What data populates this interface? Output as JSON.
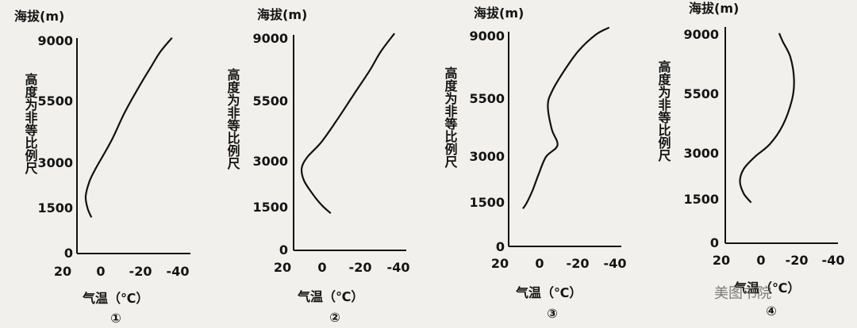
{
  "chart_data": [
    {
      "type": "line",
      "panel_label": "①",
      "ylabel_top": "海拔(m)",
      "ylabel_side": "高度为非等比例尺",
      "xlabel": "气温（℃）",
      "yticks": [
        0,
        1500,
        3000,
        5500,
        9000
      ],
      "xticks": [
        20,
        0,
        -20,
        -40
      ],
      "ytick_labels": [
        "0",
        "1500",
        "3000",
        "5500",
        "9000"
      ],
      "xtick_labels": [
        "20",
        "0",
        "-20",
        "-40"
      ],
      "xlim": [
        20,
        -40
      ],
      "series": [
        {
          "x": [
            5,
            7,
            8,
            6,
            3,
            -1,
            -6,
            -12,
            -19,
            -26,
            -31,
            -37
          ],
          "y": [
            1200,
            1500,
            1900,
            2400,
            2800,
            3300,
            4000,
            5000,
            6200,
            7500,
            8400,
            9200
          ]
        }
      ]
    },
    {
      "type": "line",
      "panel_label": "②",
      "ylabel_top": "海拔(m)",
      "ylabel_side": "高度为非等比例尺",
      "xlabel": "气温（℃）",
      "yticks": [
        0,
        1500,
        3000,
        5500,
        9000
      ],
      "xticks": [
        20,
        0,
        -20,
        -40
      ],
      "ytick_labels": [
        "0",
        "1500",
        "3000",
        "5500",
        "9000"
      ],
      "xtick_labels": [
        "20",
        "0",
        "-20",
        "-40"
      ],
      "xlim": [
        20,
        -40
      ],
      "series": [
        {
          "x": [
            -5,
            0,
            5,
            9,
            10,
            7,
            0,
            -8,
            -17,
            -25,
            -31,
            -38
          ],
          "y": [
            1300,
            1600,
            2000,
            2400,
            2800,
            3200,
            3800,
            4700,
            5900,
            7200,
            8300,
            9300
          ]
        }
      ]
    },
    {
      "type": "line",
      "panel_label": "③",
      "ylabel_top": "海拔(m)",
      "ylabel_side": "高度为非等比例尺",
      "xlabel": "气温（℃）",
      "yticks": [
        0,
        1500,
        3000,
        5500,
        9000
      ],
      "xticks": [
        20,
        0,
        -20,
        -40
      ],
      "ytick_labels": [
        "0",
        "1500",
        "3000",
        "5500",
        "9000"
      ],
      "xtick_labels": [
        "20",
        "0",
        "-20",
        "-40"
      ],
      "xlim": [
        20,
        -40
      ],
      "series": [
        {
          "x": [
            8,
            6,
            3,
            0,
            -4,
            -10,
            -7,
            -5,
            -7,
            -13,
            -21,
            -30,
            -37
          ],
          "y": [
            1300,
            1500,
            1900,
            2400,
            3000,
            3500,
            4200,
            5200,
            5900,
            7000,
            8200,
            9100,
            9500
          ]
        }
      ]
    },
    {
      "type": "line",
      "panel_label": "④",
      "ylabel_top": "海拔(m)",
      "ylabel_side": "高度为非等比例尺",
      "xlabel": "气温（℃）",
      "yticks": [
        0,
        1500,
        3000,
        5500,
        9000
      ],
      "xticks": [
        20,
        0,
        -20,
        -40
      ],
      "ytick_labels": [
        "0",
        "1500",
        "3000",
        "5500",
        "9000"
      ],
      "xtick_labels": [
        "20",
        "0",
        "-20",
        "-40"
      ],
      "xlim": [
        20,
        -40
      ],
      "series": [
        {
          "x": [
            4,
            8,
            10,
            8,
            2,
            -6,
            -13,
            -18,
            -19,
            -17,
            -13,
            -11
          ],
          "y": [
            1400,
            1700,
            2100,
            2500,
            2900,
            3400,
            4200,
            5300,
            6400,
            7700,
            8600,
            9100
          ]
        }
      ]
    }
  ],
  "watermark": "美图书院"
}
